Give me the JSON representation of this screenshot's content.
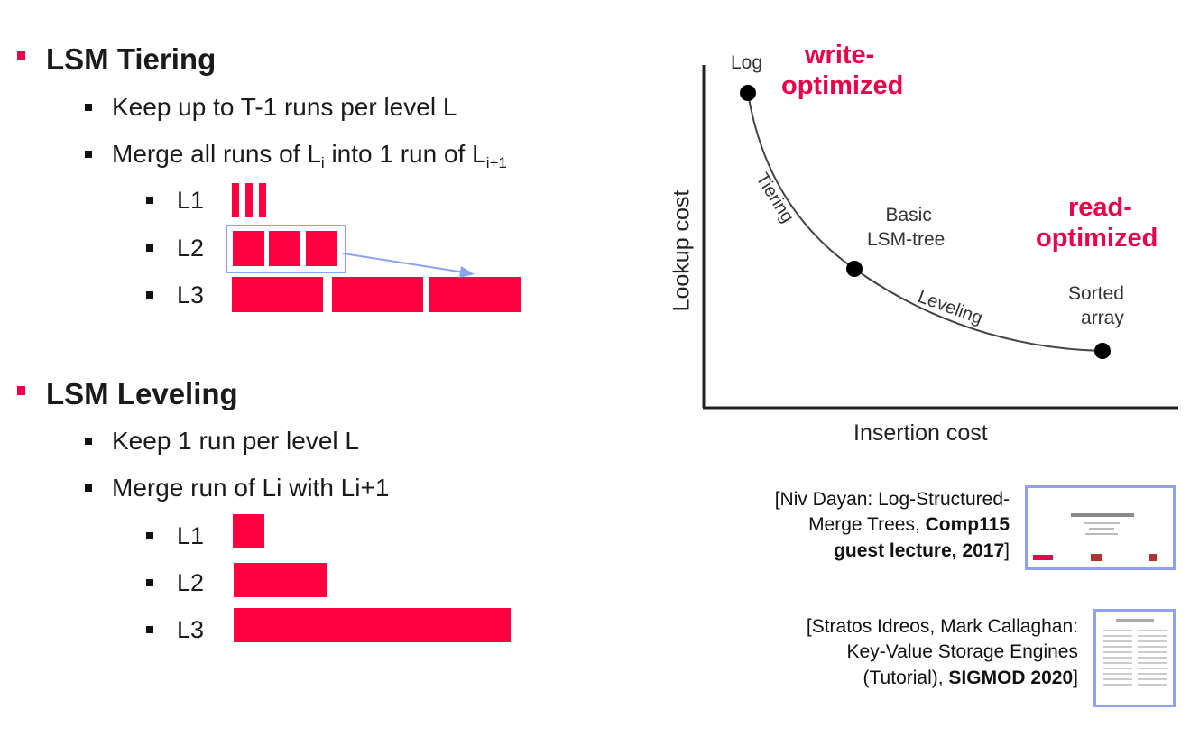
{
  "tiering": {
    "title": "LSM Tiering",
    "bullets": [
      "Keep up to T-1 runs per level L"
    ],
    "merge": {
      "prefix": "Merge all runs of L",
      "sub1": "i",
      "middle": " into 1 run of L",
      "sub2": "i+1"
    },
    "levels": [
      "L1",
      "L2",
      "L3"
    ]
  },
  "leveling": {
    "title": "LSM Leveling",
    "bullets": [
      "Keep 1 run per level L",
      "Merge run of Li with Li+1"
    ],
    "levels": [
      "L1",
      "L2",
      "L3"
    ]
  },
  "tradeoff": {
    "y_axis": "Lookup cost",
    "x_axis": "Insertion cost",
    "points": [
      {
        "label": "Log"
      },
      {
        "label_line1": "Basic",
        "label_line2": "LSM-tree"
      },
      {
        "label_line1": "Sorted",
        "label_line2": "array"
      }
    ],
    "curve_labels": [
      "Tiering",
      "Leveling"
    ],
    "write_opt": [
      "write-",
      "optimized"
    ],
    "read_opt": [
      "read-",
      "optimized"
    ]
  },
  "refs": [
    {
      "line1": "[Niv Dayan: Log-Structured-",
      "line2": "Merge Trees, ",
      "line2_bold": "Comp115",
      "line3_bold": "guest lecture, 2017",
      "line3_end": "]"
    },
    {
      "line1": "[Stratos Idreos, Mark Callaghan:",
      "line2": "Key-Value Storage Engines",
      "line3": "(Tutorial), ",
      "line3_bold": "SIGMOD 2020",
      "line3_end": "]"
    }
  ],
  "colors": {
    "accent": "#e8004a",
    "run": "#ff0040",
    "highlight": "#8ea2f0"
  }
}
